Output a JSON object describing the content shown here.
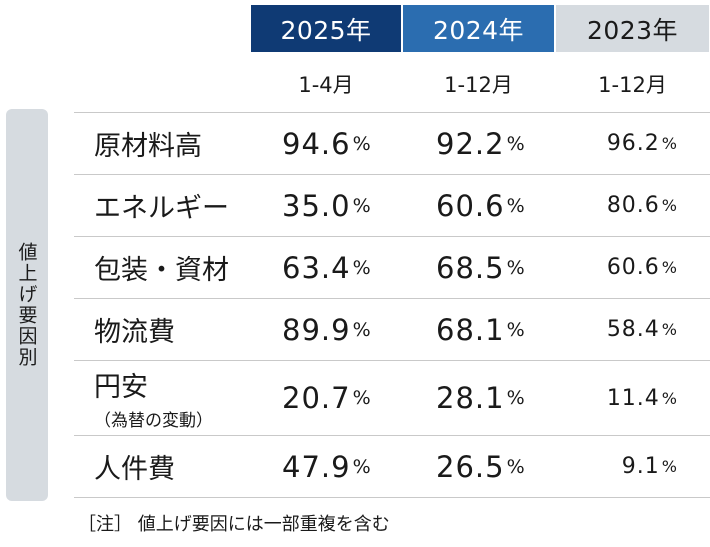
{
  "headers": [
    {
      "year": "2025年",
      "period": "1-4月"
    },
    {
      "year": "2024年",
      "period": "1-12月"
    },
    {
      "year": "2023年",
      "period": "1-12月"
    }
  ],
  "side_label": "値上げ要因別",
  "rows": [
    {
      "label": "原材料高",
      "note": "",
      "v2025": "94.6",
      "v2024": "92.2",
      "v2023": "96.2"
    },
    {
      "label": "エネルギー",
      "note": "",
      "v2025": "35.0",
      "v2024": "60.6",
      "v2023": "80.6"
    },
    {
      "label": "包装・資材",
      "note": "",
      "v2025": "63.4",
      "v2024": "68.5",
      "v2023": "60.6"
    },
    {
      "label": "物流費",
      "note": "",
      "v2025": "89.9",
      "v2024": "68.1",
      "v2023": "58.4"
    },
    {
      "label": "円安",
      "note": "（為替の変動）",
      "v2025": "20.7",
      "v2024": "28.1",
      "v2023": "11.4"
    },
    {
      "label": "人件費",
      "note": "",
      "v2025": "47.9",
      "v2024": "26.5",
      "v2023": "9.1"
    }
  ],
  "unit": "%",
  "footnote": "［注］ 値上げ要因には一部重複を含む"
}
